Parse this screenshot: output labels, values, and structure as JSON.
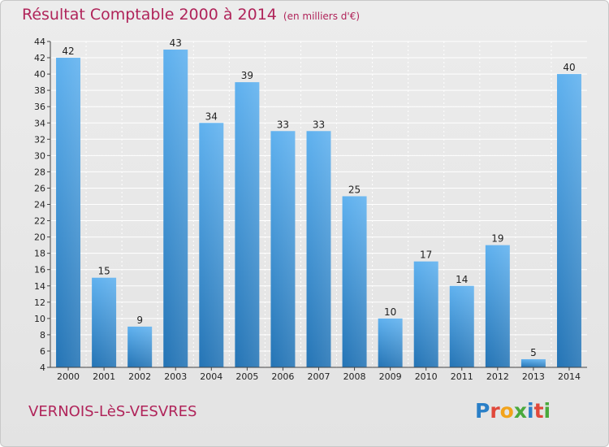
{
  "title": "Résultat Comptable 2000 à 2014",
  "subtitle": "(en milliers d'€)",
  "commune": "VERNOIS-LèS-VESVRES",
  "logo_text": "Proxiti",
  "colors": {
    "title": "#b0245a",
    "bar_light": "#5fb1ef",
    "bar_dark": "#2474b5",
    "grid": "#ffffff",
    "background": "#e8e8e8"
  },
  "chart_data": {
    "type": "bar",
    "title": "Résultat Comptable 2000 à 2014",
    "xlabel": "",
    "ylabel": "",
    "ylim": [
      4,
      44
    ],
    "ytick_step": 2,
    "grid": true,
    "categories": [
      "2000",
      "2001",
      "2002",
      "2003",
      "2004",
      "2005",
      "2006",
      "2007",
      "2008",
      "2009",
      "2010",
      "2011",
      "2012",
      "2013",
      "2014"
    ],
    "values": [
      42,
      15,
      9,
      43,
      34,
      39,
      33,
      33,
      25,
      10,
      17,
      14,
      19,
      5,
      40
    ]
  }
}
